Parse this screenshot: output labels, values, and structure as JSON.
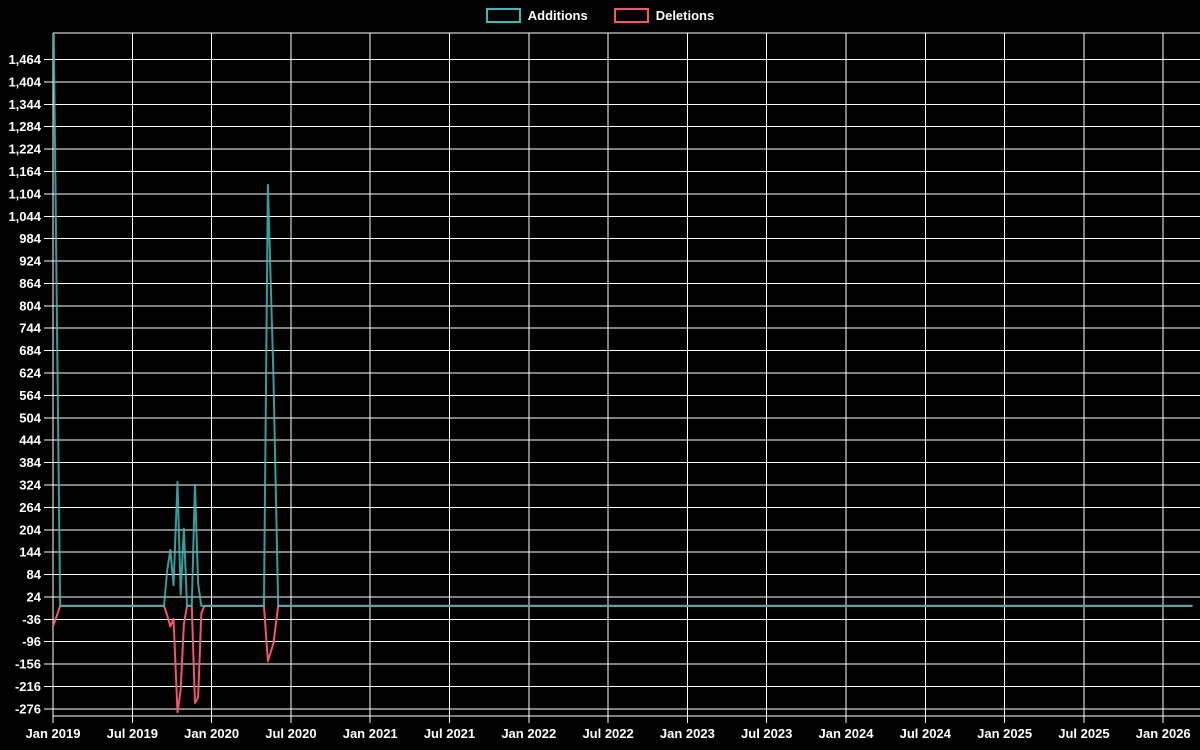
{
  "chart_data": {
    "type": "line",
    "title": "",
    "legend_position": "top-center",
    "background_color": "#000000",
    "grid_color": "#ffffff",
    "text_color": "#ffffff",
    "grid": true,
    "xlim_years": [
      2019.0,
      2026.232
    ],
    "ylim": [
      -295,
      1535
    ],
    "x_ticks": {
      "years": [
        2019.0,
        2019.5,
        2020.0,
        2020.5,
        2021.0,
        2021.5,
        2022.0,
        2022.5,
        2023.0,
        2023.5,
        2024.0,
        2024.5,
        2025.0,
        2025.5,
        2026.0
      ],
      "labels": [
        "Jan 2019",
        "Jul 2019",
        "Jan 2020",
        "Jul 2020",
        "Jan 2021",
        "Jul 2021",
        "Jan 2022",
        "Jul 2022",
        "Jan 2023",
        "Jul 2023",
        "Jan 2024",
        "Jul 2024",
        "Jan 2025",
        "Jul 2025",
        "Jan 2026"
      ]
    },
    "y_ticks": {
      "values": [
        1464,
        1404,
        1344,
        1284,
        1224,
        1164,
        1104,
        1044,
        984,
        924,
        864,
        804,
        744,
        684,
        624,
        564,
        504,
        444,
        384,
        324,
        264,
        204,
        144,
        84,
        24,
        -36,
        -96,
        -156,
        -216,
        -276
      ],
      "labels": [
        "1,464",
        "1,404",
        "1,344",
        "1,284",
        "1,224",
        "1,164",
        "1,104",
        "1,044",
        "984",
        "924",
        "864",
        "804",
        "744",
        "684",
        "624",
        "564",
        "504",
        "444",
        "384",
        "324",
        "264",
        "204",
        "144",
        "84",
        "24",
        "-36",
        "-96",
        "-156",
        "-216",
        "-276"
      ]
    },
    "x_years": [
      2019.005,
      2019.025,
      2019.045,
      2019.7,
      2019.72,
      2019.74,
      2019.76,
      2019.785,
      2019.805,
      2019.825,
      2019.845,
      2019.875,
      2019.895,
      2019.915,
      2019.935,
      2019.955,
      2020.33,
      2020.355,
      2020.39,
      2020.42,
      2026.18
    ],
    "series": [
      {
        "name": "Additions",
        "color": "#40b8b8",
        "values": [
          1530,
          760,
          0,
          0,
          95,
          150,
          55,
          332,
          30,
          207,
          0,
          0,
          325,
          60,
          0,
          0,
          0,
          1128,
          615,
          0,
          0
        ]
      },
      {
        "name": "Deletions",
        "color": "#f4546f",
        "values": [
          -50,
          -25,
          0,
          0,
          -25,
          -55,
          -35,
          -285,
          -225,
          -50,
          0,
          0,
          -260,
          -245,
          -20,
          0,
          0,
          -148,
          -100,
          0,
          0
        ]
      }
    ]
  }
}
